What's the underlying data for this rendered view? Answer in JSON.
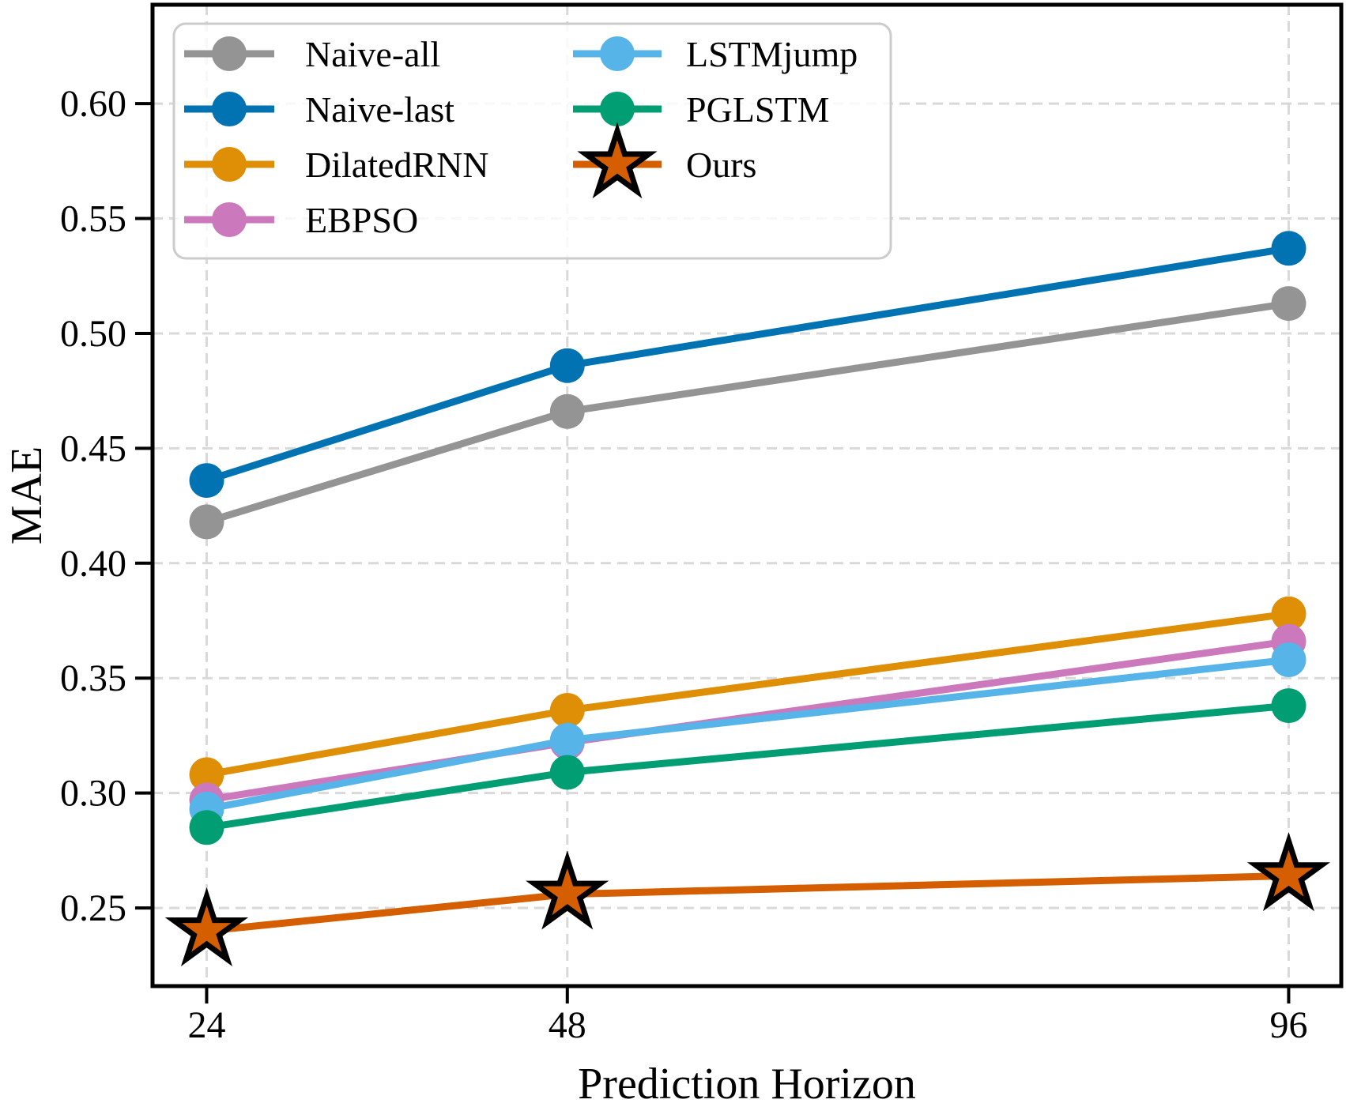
{
  "chart_data": {
    "type": "line",
    "title": "",
    "xlabel": "Prediction Horizon",
    "ylabel": "MAE",
    "x": [
      24,
      48,
      96
    ],
    "xtick_labels": [
      "24",
      "48",
      "96"
    ],
    "xlim": [
      20.4,
      99.5
    ],
    "yticks": [
      0.25,
      0.3,
      0.35,
      0.4,
      0.45,
      0.5,
      0.55,
      0.6
    ],
    "ytick_labels": [
      "0.25",
      "0.30",
      "0.35",
      "0.40",
      "0.45",
      "0.50",
      "0.55",
      "0.60"
    ],
    "ylim": [
      0.216,
      0.643
    ],
    "grid": true,
    "grid_style": "dashed",
    "legend_position": "upper-left, 2 columns",
    "series": [
      {
        "name": "Naive-all",
        "color": "#949494",
        "marker": "circle",
        "values": [
          0.418,
          0.466,
          0.513
        ]
      },
      {
        "name": "Naive-last",
        "color": "#0173B2",
        "marker": "circle",
        "values": [
          0.436,
          0.486,
          0.537
        ]
      },
      {
        "name": "DilatedRNN",
        "color": "#DE8F05",
        "marker": "circle",
        "values": [
          0.308,
          0.336,
          0.378
        ]
      },
      {
        "name": "EBPSO",
        "color": "#CC78BC",
        "marker": "circle",
        "values": [
          0.297,
          0.322,
          0.366
        ]
      },
      {
        "name": "LSTMjump",
        "color": "#56B4E9",
        "marker": "circle",
        "values": [
          0.293,
          0.323,
          0.358
        ]
      },
      {
        "name": "PGLSTM",
        "color": "#029E73",
        "marker": "circle",
        "values": [
          0.285,
          0.309,
          0.338
        ]
      },
      {
        "name": "Ours",
        "color": "#D55E00",
        "marker": "star",
        "marker_edge": "#000000",
        "values": [
          0.24,
          0.256,
          0.264
        ]
      }
    ],
    "legend_columns": [
      [
        "Naive-all",
        "Naive-last",
        "DilatedRNN",
        "EBPSO"
      ],
      [
        "LSTMjump",
        "PGLSTM",
        "Ours"
      ]
    ],
    "colors": {
      "grid": "#d9d9d9",
      "spine": "#000000",
      "background": "#ffffff",
      "legend_border": "#cccccc"
    }
  }
}
